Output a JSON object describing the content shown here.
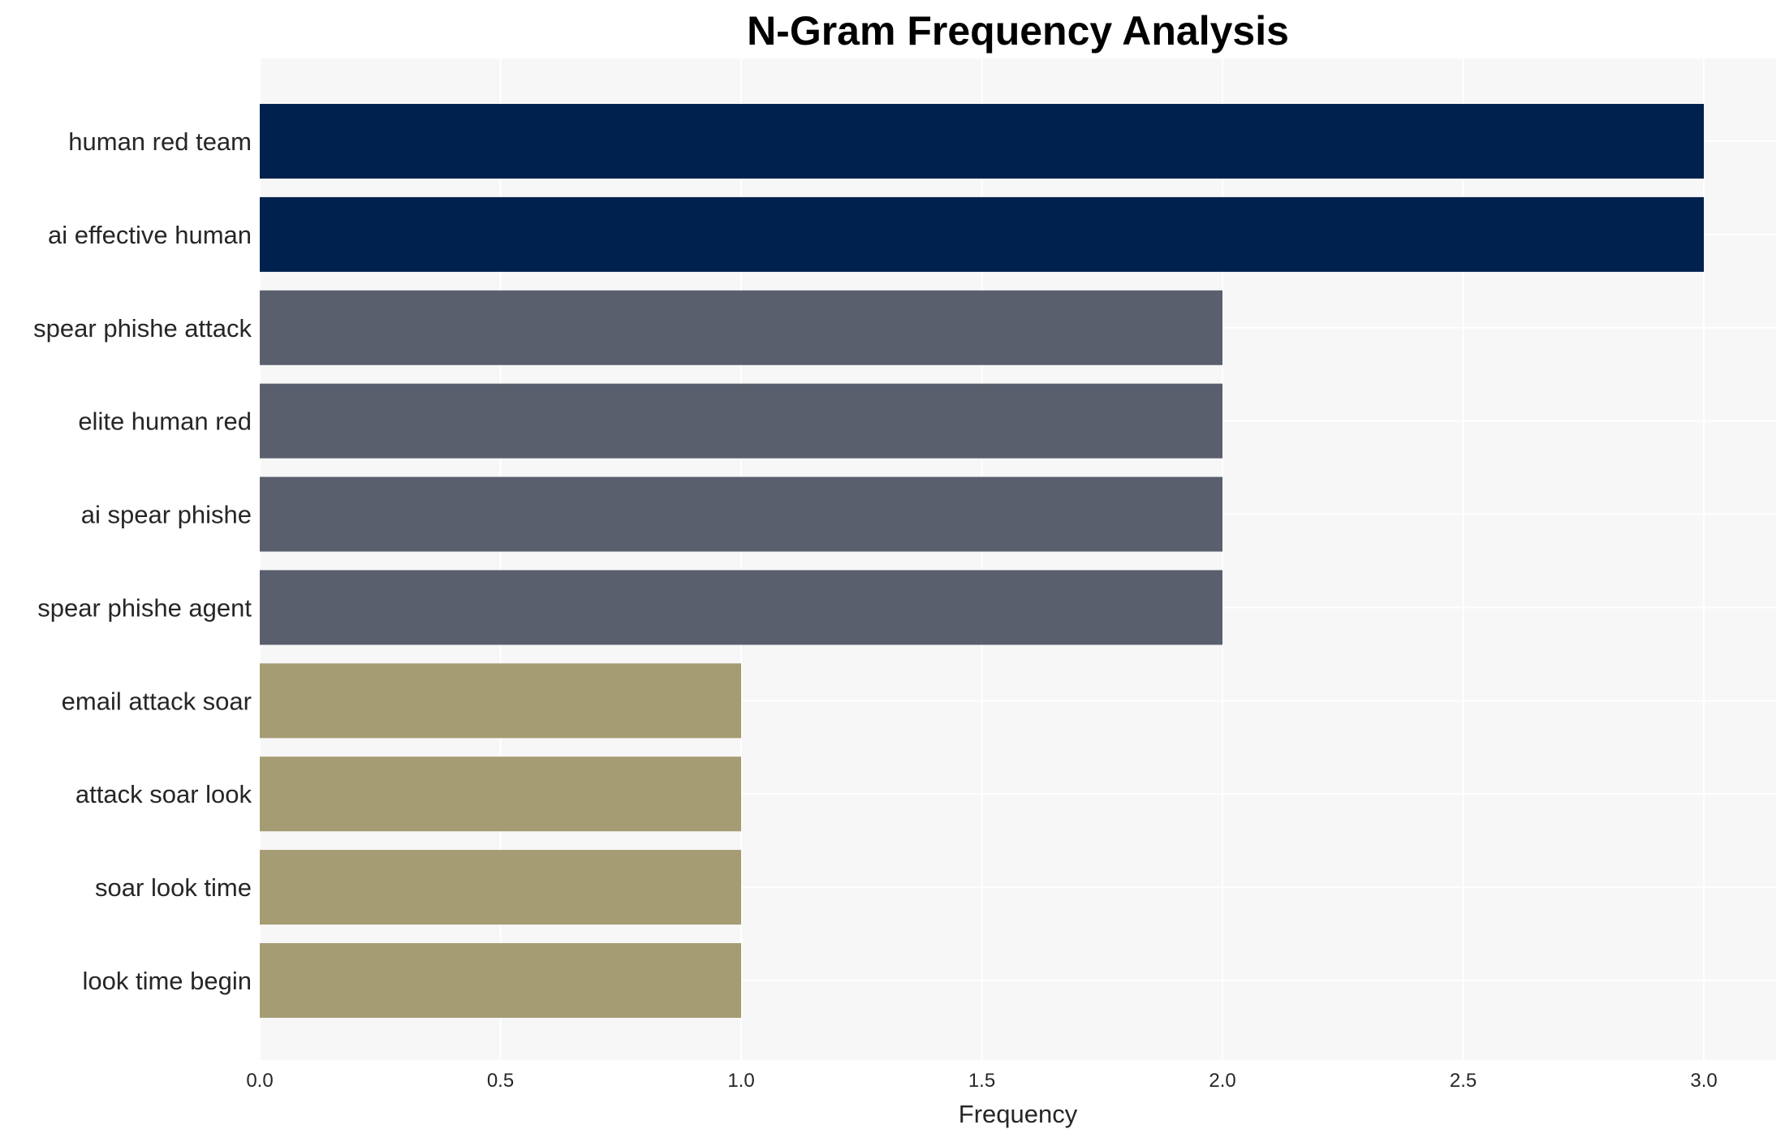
{
  "chart_data": {
    "type": "bar",
    "orientation": "horizontal",
    "title": "N-Gram Frequency Analysis",
    "xlabel": "Frequency",
    "ylabel": "",
    "xlim": [
      0,
      3.15
    ],
    "xticks": [
      "0.0",
      "0.5",
      "1.0",
      "1.5",
      "2.0",
      "2.5",
      "3.0"
    ],
    "grid": true,
    "categories": [
      "human red team",
      "ai effective human",
      "spear phishe attack",
      "elite human red",
      "ai spear phishe",
      "spear phishe agent",
      "email attack soar",
      "attack soar look",
      "soar look time",
      "look time begin"
    ],
    "values": [
      3,
      3,
      2,
      2,
      2,
      2,
      1,
      1,
      1,
      1
    ],
    "colors": {
      "3": "#00214d",
      "2": "#5a5f6e",
      "1": "#a59c74",
      "plot_background": "#f7f7f7",
      "grid": "#ffffff"
    }
  }
}
